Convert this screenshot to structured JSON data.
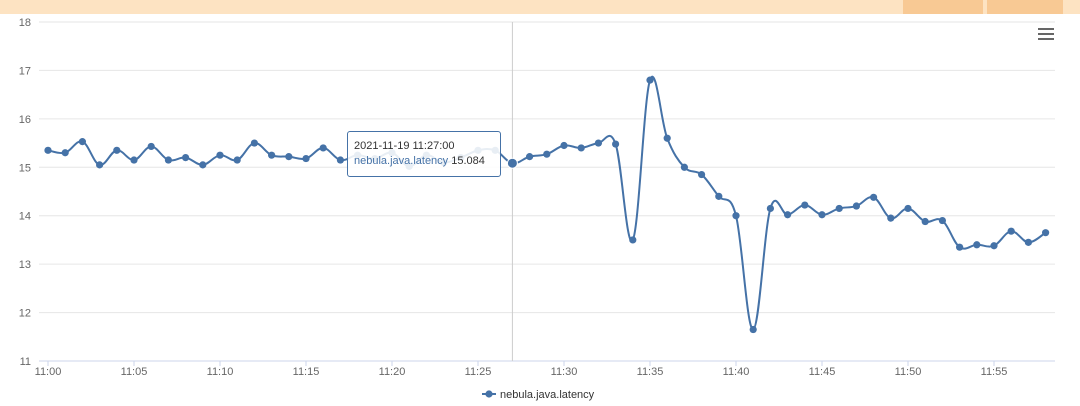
{
  "chart_data": {
    "type": "line",
    "title": "",
    "xlabel": "",
    "ylabel": "",
    "ylim": [
      11,
      18
    ],
    "yticks": [
      "11",
      "12",
      "13",
      "14",
      "15",
      "16",
      "17",
      "18"
    ],
    "xticks": [
      "11:00",
      "11:05",
      "11:10",
      "11:15",
      "11:20",
      "11:25",
      "11:30",
      "11:35",
      "11:40",
      "11:45",
      "11:50",
      "11:55"
    ],
    "grid": true,
    "legend_position": "bottom",
    "series": [
      {
        "name": "nebula.java.latency",
        "color": "#4572a7",
        "x_minutes": [
          0,
          1,
          2,
          3,
          4,
          5,
          6,
          7,
          8,
          9,
          10,
          11,
          12,
          13,
          14,
          15,
          16,
          17,
          18,
          19,
          20,
          21,
          22,
          23,
          24,
          25,
          26,
          27,
          28,
          29,
          30,
          31,
          32,
          33,
          34,
          35,
          36,
          37,
          38,
          39,
          40,
          41,
          42,
          43,
          44,
          45,
          46,
          47,
          48,
          49,
          50,
          51,
          52,
          53,
          54,
          55,
          56,
          57,
          58
        ],
        "values": [
          15.35,
          15.3,
          15.53,
          15.05,
          15.35,
          15.15,
          15.43,
          15.15,
          15.2,
          15.05,
          15.25,
          15.15,
          15.5,
          15.25,
          15.22,
          15.18,
          15.4,
          15.15,
          15.25,
          15.18,
          15.3,
          15.02,
          15.25,
          15.1,
          15.2,
          15.35,
          15.35,
          15.084,
          15.22,
          15.27,
          15.45,
          15.4,
          15.5,
          15.48,
          13.5,
          16.8,
          15.6,
          15.0,
          14.85,
          14.4,
          14.0,
          11.65,
          14.15,
          14.02,
          14.22,
          14.02,
          14.15,
          14.2,
          14.38,
          13.95,
          14.15,
          13.88,
          13.9,
          13.35,
          13.4,
          13.38,
          13.68,
          13.45,
          13.65
        ]
      }
    ]
  },
  "tooltip": {
    "time": "2021-11-19 11:27:00",
    "series_name": "nebula.java.latency",
    "value": "15.084",
    "x_minute": 27
  },
  "icons": {
    "menu": "hamburger-menu-icon"
  }
}
